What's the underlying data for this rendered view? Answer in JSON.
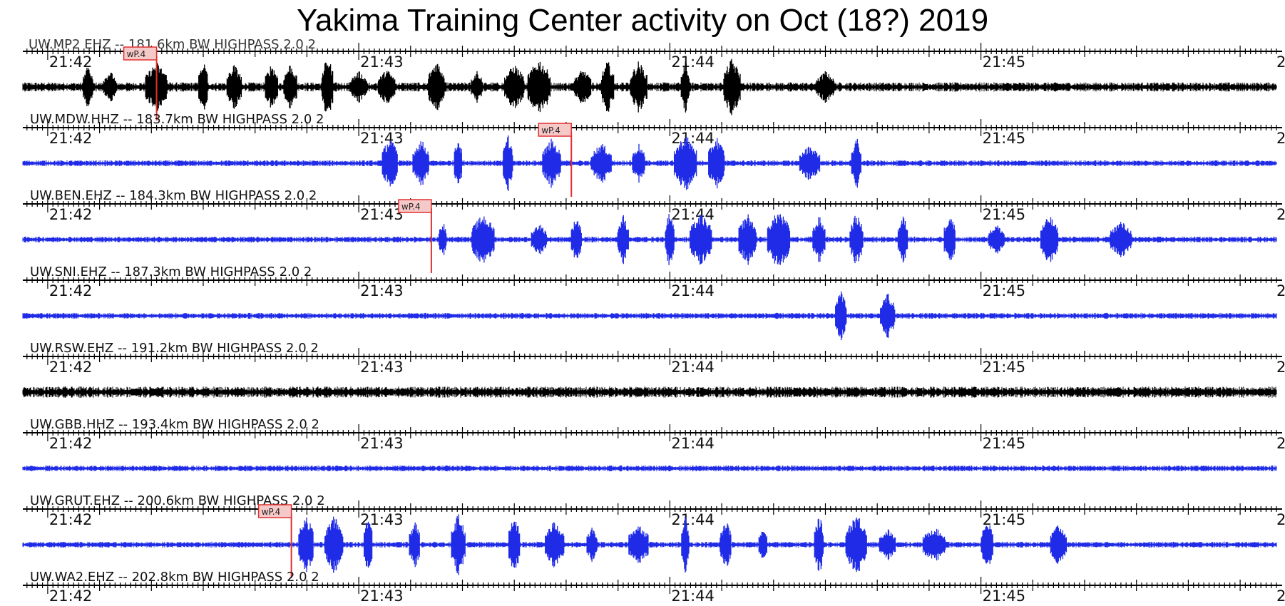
{
  "title": "Yakima Training Center activity on Oct (18?) 2019",
  "chart_data": {
    "type": "seismogram",
    "title": "Yakima Training Center activity on Oct (18?) 2019",
    "time_ticks": [
      "21:42",
      "21:43",
      "21:44",
      "21:45",
      "2"
    ],
    "time_range_minutes": [
      41.92,
      45.95
    ],
    "pick_label": "wP.4",
    "colors": {
      "black": "#000000",
      "blue": "#1f2be6",
      "pick_line": "#e03030",
      "pick_box": "#f6c9c9"
    },
    "partial_top_label": "UW.MP2 EHZ -- 181.6km BW HIGHPASS 2.0 2",
    "traces": [
      {
        "label": "UW.MDW.HHZ -- 183.7km BW HIGHPASS 2.0 2",
        "color": "black",
        "pick_time": "21:42:21",
        "bursts_min": [
          42.13,
          42.2,
          42.35,
          42.5,
          42.6,
          42.72,
          42.78,
          42.9,
          43.0,
          43.09,
          43.25,
          43.38,
          43.5,
          43.58,
          43.72,
          43.8,
          43.9,
          44.05,
          44.2,
          44.5
        ]
      },
      {
        "label": "UW.BEN.EHZ -- 184.3km BW HIGHPASS 2.0 2",
        "color": "blue",
        "pick_time": "21:43:41",
        "bursts_min": [
          43.1,
          43.2,
          43.32,
          43.48,
          43.62,
          43.78,
          43.9,
          44.05,
          44.15,
          44.45,
          44.6
        ]
      },
      {
        "label": "UW.SNI.EHZ -- 187.3km BW HIGHPASS 2.0 2",
        "color": "blue",
        "pick_time": "21:43:14",
        "bursts_min": [
          43.27,
          43.4,
          43.58,
          43.7,
          43.85,
          44.0,
          44.1,
          44.25,
          44.35,
          44.48,
          44.6,
          44.75,
          44.9,
          45.05,
          45.22,
          45.45
        ]
      },
      {
        "label": "UW.RSW.EHZ -- 191.2km BW HIGHPASS 2.0 2",
        "color": "blue",
        "pick_time": "",
        "bursts_min": [
          44.55,
          44.7
        ]
      },
      {
        "label": "UW.GBB.HHZ -- 193.4km BW HIGHPASS 2.0 2",
        "color": "black",
        "pick_time": "",
        "bursts_min": []
      },
      {
        "label": "UW.GRUT.EHZ -- 200.6km BW HIGHPASS 2.0 2",
        "color": "blue",
        "pick_time": "",
        "bursts_min": []
      },
      {
        "label": "UW.WA2.EHZ -- 202.8km BW HIGHPASS 2.0 2",
        "color": "blue",
        "pick_time": "21:42:47",
        "bursts_min": [
          42.83,
          42.92,
          43.03,
          43.18,
          43.32,
          43.5,
          43.63,
          43.75,
          43.9,
          44.05,
          44.18,
          44.3,
          44.48,
          44.6,
          44.7,
          44.85,
          45.02,
          45.25
        ]
      }
    ]
  }
}
